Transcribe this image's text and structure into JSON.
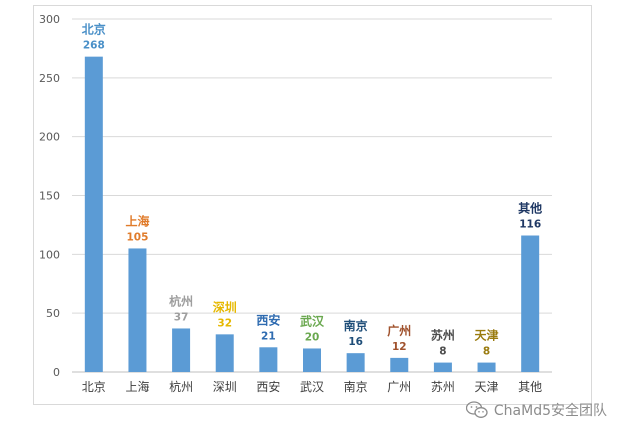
{
  "chart_data": {
    "type": "bar",
    "categories": [
      "北京",
      "上海",
      "杭州",
      "深圳",
      "西安",
      "武汉",
      "南京",
      "广州",
      "苏州",
      "天津",
      "其他"
    ],
    "values": [
      268,
      105,
      37,
      32,
      21,
      20,
      16,
      12,
      8,
      8,
      116
    ],
    "ylim": [
      0,
      300
    ],
    "yticks": [
      0,
      50,
      100,
      150,
      200,
      250,
      300
    ],
    "grid": true,
    "bar_color": "#5b9bd5",
    "annotation_colors": [
      "#4a90c8",
      "#e07b2a",
      "#9e9e9e",
      "#e6b800",
      "#2e6bb0",
      "#6aa84f",
      "#1f4e79",
      "#a0522d",
      "#4d4d4d",
      "#9a7b0f",
      "#1f3864"
    ]
  },
  "watermark": {
    "icon": "wechat-icon",
    "text": "ChaMd5安全团队"
  }
}
